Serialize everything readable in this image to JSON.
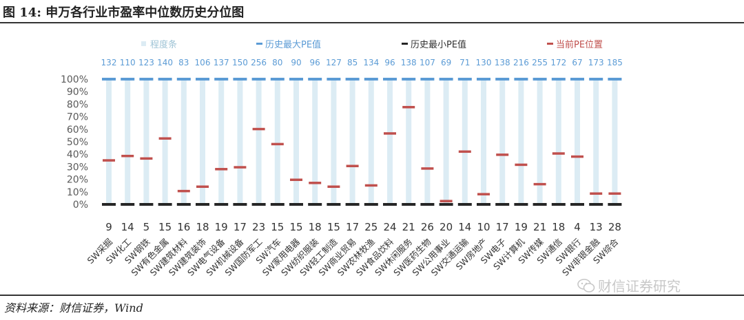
{
  "header": {
    "title": "图 14:  申万各行业市盈率中位数历史分位图"
  },
  "footer": {
    "source": "资料来源：财信证券，Wind",
    "watermark": "财信证券研究"
  },
  "colors": {
    "range": "#dcecf4",
    "max": "#5b9bd5",
    "min": "#262626",
    "current": "#c0504d",
    "axis": "#7f7f7f"
  },
  "chart_data": {
    "type": "bar",
    "categories": [
      "SW采掘",
      "SW化工",
      "SW钢铁",
      "SW有色金属",
      "SW建筑材料",
      "SW建筑装饰",
      "SW电气设备",
      "SW机械设备",
      "SW国防军工",
      "SW汽车",
      "SW家用电器",
      "SW纺织服装",
      "SW轻工制造",
      "SW商业贸易",
      "SW农林牧渔",
      "SW食品饮料",
      "SW休闲服务",
      "SW医药生物",
      "SW公用事业",
      "SW交通运输",
      "SW房地产",
      "SW电子",
      "SW计算机",
      "SW传媒",
      "SW通信",
      "SW银行",
      "SW非银金融",
      "SW综合"
    ],
    "max_pe": [
      132,
      110,
      123,
      140,
      83,
      106,
      137,
      150,
      256,
      80,
      90,
      96,
      127,
      85,
      134,
      96,
      138,
      107,
      69,
      71,
      130,
      138,
      216,
      255,
      172,
      67,
      173,
      185
    ],
    "min_pe": [
      9,
      14,
      5,
      15,
      16,
      18,
      19,
      17,
      23,
      15,
      15,
      18,
      15,
      17,
      25,
      24,
      21,
      26,
      20,
      14,
      10,
      17,
      19,
      21,
      18,
      4,
      13,
      28
    ],
    "current_percentile": [
      35,
      38.5,
      36.5,
      52.5,
      10.5,
      14,
      28,
      29.5,
      60,
      48,
      19.5,
      17,
      14,
      30.5,
      15,
      56.5,
      77.5,
      28.5,
      2.5,
      42,
      8,
      39.5,
      31.5,
      16,
      40.5,
      38,
      8.5,
      8.5
    ],
    "series": [
      {
        "name": "程度条",
        "color": "#dcecf4"
      },
      {
        "name": "历史最大PE值",
        "color": "#5b9bd5"
      },
      {
        "name": "历史最小PE值",
        "color": "#262626"
      },
      {
        "name": "当前PE位置",
        "color": "#c0504d"
      }
    ],
    "yticks": [
      "100%",
      "90%",
      "80%",
      "70%",
      "60%",
      "50%",
      "40%",
      "30%",
      "20%",
      "10%",
      "0%"
    ],
    "ylim": [
      0,
      100
    ],
    "legend_position": "top"
  }
}
